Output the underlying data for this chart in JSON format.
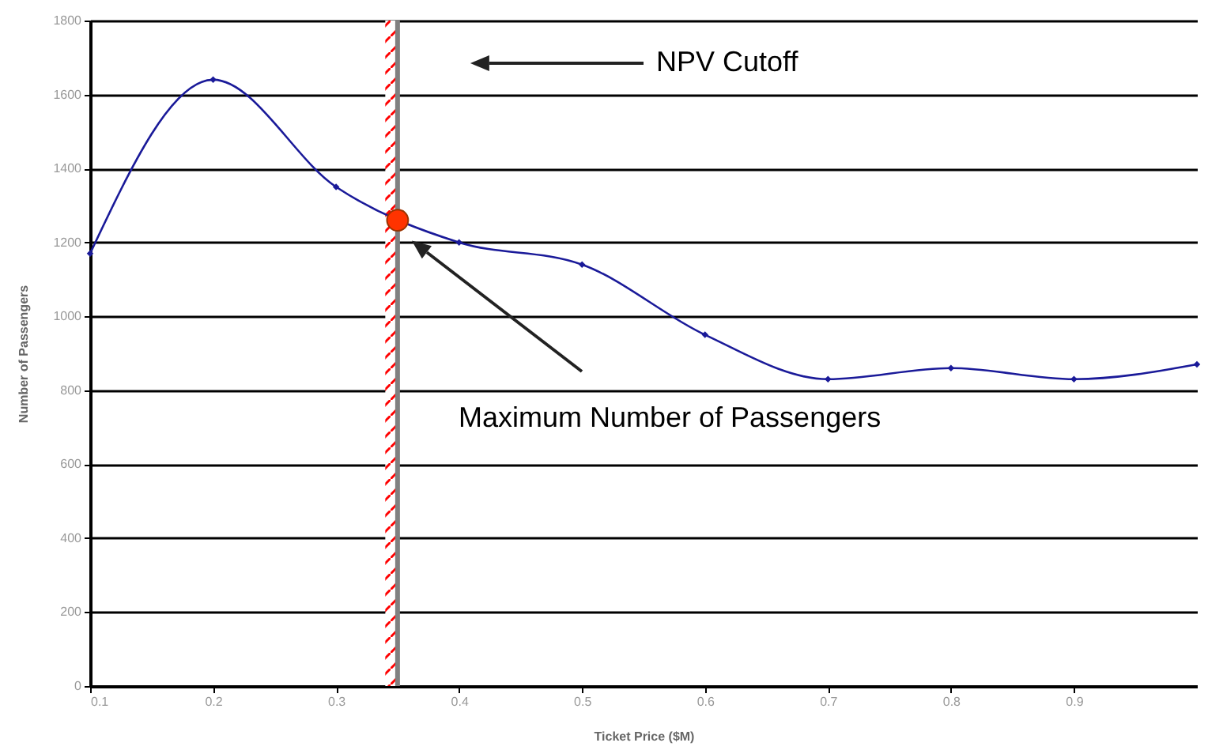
{
  "chart_data": {
    "type": "line",
    "xlabel": "Ticket Price ($M)",
    "ylabel": "Number of Passengers",
    "x": [
      0.1,
      0.2,
      0.3,
      0.4,
      0.5,
      0.6,
      0.7,
      0.8,
      0.9,
      1.0
    ],
    "series": [
      {
        "color": "#1a1a99",
        "values": [
          1170,
          1640,
          1350,
          1200,
          1140,
          950,
          830,
          860,
          830,
          870
        ]
      },
      {
        "type": "scatter",
        "x": [
          0.35
        ],
        "color": "#ff3300",
        "marker": "circle",
        "values": [
          1260
        ]
      }
    ],
    "xlim": [
      0.1,
      1.0
    ],
    "xticks": [
      0.1,
      0.2,
      0.3,
      0.4,
      0.5,
      0.6,
      0.7,
      0.8,
      0.9
    ],
    "ylim": [
      0,
      1800
    ],
    "yticks": [
      0,
      200,
      400,
      600,
      800,
      1000,
      1200,
      1400,
      1600,
      1800
    ],
    "grid": "y",
    "marker": "diamond",
    "line_style": "solid",
    "ref_lines": [
      {
        "axis": "x",
        "value": 0.35,
        "color": "#808080"
      }
    ],
    "bands": [
      {
        "axis": "x",
        "from": 0.34,
        "to": 0.35,
        "color": "#ff0000"
      }
    ],
    "annotations": [
      "NPV Cutoff",
      "Maximum Number of Passengers"
    ]
  }
}
